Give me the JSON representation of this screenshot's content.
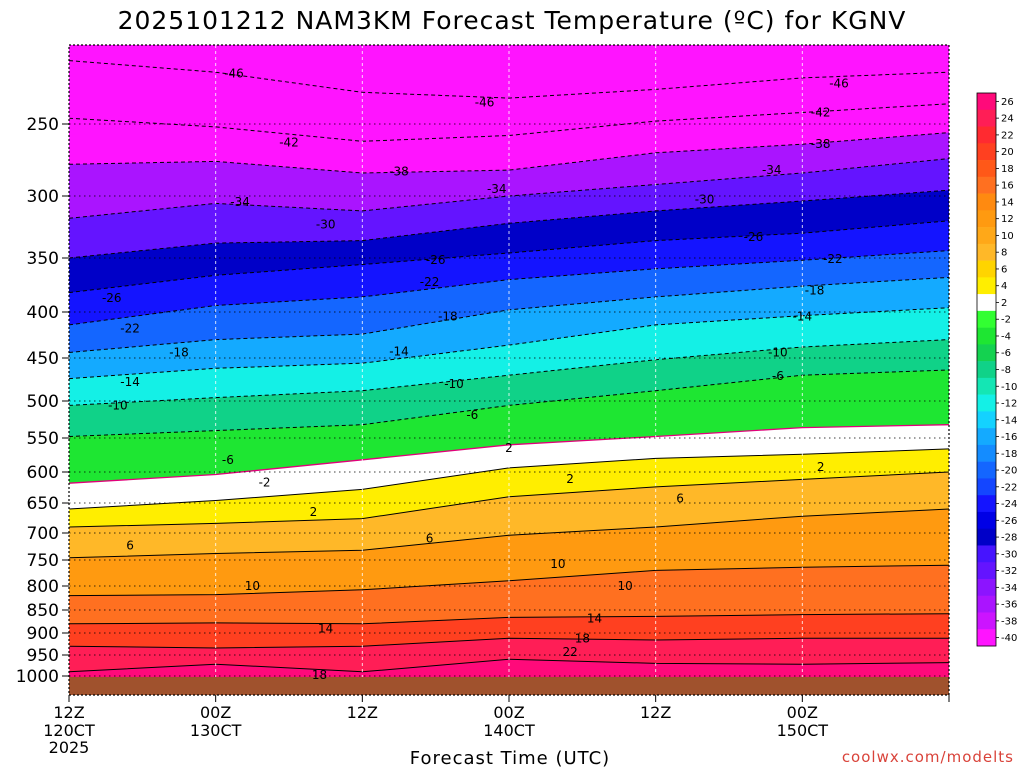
{
  "chart_data": {
    "type": "heatmap",
    "title": "2025101212 NAM3KM Forecast Temperature (ºC) for KGNV",
    "xlabel": "Forecast Time (UTC)",
    "ylabel": "",
    "credit": "coolwx.com/modelts",
    "x_range_hours": [
      0,
      72
    ],
    "y_range_hpa": [
      1050,
      200
    ],
    "y_ticks": [
      250,
      300,
      350,
      400,
      450,
      500,
      550,
      600,
      650,
      700,
      750,
      800,
      850,
      900,
      950,
      1000
    ],
    "y_tick_labels": [
      "250",
      "300",
      "350",
      "400",
      "450",
      "500",
      "550",
      "600",
      "650",
      "700",
      "750",
      "800",
      "850",
      "900",
      "950",
      "1000"
    ],
    "x_ticks": [
      {
        "hour": 0,
        "line1": "12Z",
        "line2": "120CT",
        "line3": "2025"
      },
      {
        "hour": 12,
        "line1": "00Z",
        "line2": "130CT",
        "line3": ""
      },
      {
        "hour": 24,
        "line1": "12Z",
        "line2": "",
        "line3": ""
      },
      {
        "hour": 36,
        "line1": "00Z",
        "line2": "140CT",
        "line3": ""
      },
      {
        "hour": 48,
        "line1": "12Z",
        "line2": "",
        "line3": ""
      },
      {
        "hour": 60,
        "line1": "00Z",
        "line2": "150CT",
        "line3": ""
      }
    ],
    "ground_pressure_hpa": 1000,
    "colorbar": {
      "labels": [
        "26",
        "24",
        "22",
        "20",
        "18",
        "16",
        "14",
        "12",
        "10",
        "8",
        "6",
        "4",
        "2",
        "-2",
        "-4",
        "-6",
        "-8",
        "-10",
        "-12",
        "-14",
        "-16",
        "-18",
        "-20",
        "-22",
        "-24",
        "-26",
        "-28",
        "-30",
        "-32",
        "-34",
        "-36",
        "-38",
        "-40"
      ],
      "colors": [
        "#ff0a7a",
        "#ff1e56",
        "#ff2a30",
        "#ff4020",
        "#ff5818",
        "#ff7020",
        "#ff8a10",
        "#ff9a10",
        "#ffa818",
        "#ffb828",
        "#ffd400",
        "#ffee00",
        "#ffffff",
        "#32ff32",
        "#1ee632",
        "#14d250",
        "#10d288",
        "#14e6b4",
        "#14f0e6",
        "#14d2ff",
        "#14aaff",
        "#148cff",
        "#1466ff",
        "#1446ff",
        "#1414ff",
        "#0000e6",
        "#0000c8",
        "#4614ff",
        "#6414ff",
        "#8c14ff",
        "#aa14ff",
        "#cc14ff",
        "#ff14ff"
      ]
    },
    "isotherm_labels": [
      {
        "text": "-46",
        "hour": 13.5,
        "p": 215
      },
      {
        "text": "-46",
        "hour": 34,
        "p": 235
      },
      {
        "text": "-46",
        "hour": 63,
        "p": 222
      },
      {
        "text": "-42",
        "hour": 18,
        "p": 263
      },
      {
        "text": "-42",
        "hour": 61.5,
        "p": 242
      },
      {
        "text": "-38",
        "hour": 27,
        "p": 283
      },
      {
        "text": "-38",
        "hour": 61.5,
        "p": 264
      },
      {
        "text": "-34",
        "hour": 14,
        "p": 305
      },
      {
        "text": "-34",
        "hour": 35,
        "p": 295
      },
      {
        "text": "-34",
        "hour": 57.5,
        "p": 282
      },
      {
        "text": "-30",
        "hour": 21,
        "p": 323
      },
      {
        "text": "-30",
        "hour": 52,
        "p": 303
      },
      {
        "text": "-26",
        "hour": 3.5,
        "p": 387
      },
      {
        "text": "-26",
        "hour": 30,
        "p": 352
      },
      {
        "text": "-26",
        "hour": 56,
        "p": 333
      },
      {
        "text": "-22",
        "hour": 5,
        "p": 418
      },
      {
        "text": "-22",
        "hour": 29.5,
        "p": 372
      },
      {
        "text": "-22",
        "hour": 62.5,
        "p": 351
      },
      {
        "text": "-18",
        "hour": 9,
        "p": 444
      },
      {
        "text": "-18",
        "hour": 31,
        "p": 405
      },
      {
        "text": "-18",
        "hour": 61,
        "p": 380
      },
      {
        "text": "-14",
        "hour": 5,
        "p": 478
      },
      {
        "text": "-14",
        "hour": 27,
        "p": 443
      },
      {
        "text": "-14",
        "hour": 60,
        "p": 405
      },
      {
        "text": "-10",
        "hour": 4,
        "p": 506
      },
      {
        "text": "-10",
        "hour": 31.5,
        "p": 480
      },
      {
        "text": "-10",
        "hour": 58,
        "p": 444
      },
      {
        "text": "-6",
        "hour": 13,
        "p": 582
      },
      {
        "text": "-6",
        "hour": 33,
        "p": 519
      },
      {
        "text": "-6",
        "hour": 58,
        "p": 471
      },
      {
        "text": "-2",
        "hour": 16,
        "p": 617
      },
      {
        "text": "2",
        "hour": 36,
        "p": 565
      },
      {
        "text": "2",
        "hour": 20,
        "p": 665
      },
      {
        "text": "2",
        "hour": 41,
        "p": 611
      },
      {
        "text": "2",
        "hour": 61.5,
        "p": 593
      },
      {
        "text": "6",
        "hour": 5,
        "p": 723
      },
      {
        "text": "6",
        "hour": 29.5,
        "p": 710
      },
      {
        "text": "6",
        "hour": 50,
        "p": 643
      },
      {
        "text": "10",
        "hour": 15,
        "p": 800
      },
      {
        "text": "10",
        "hour": 40,
        "p": 758
      },
      {
        "text": "10",
        "hour": 45.5,
        "p": 800
      },
      {
        "text": "14",
        "hour": 21,
        "p": 890
      },
      {
        "text": "14",
        "hour": 43,
        "p": 868
      },
      {
        "text": "18",
        "hour": 20.5,
        "p": 998
      },
      {
        "text": "18",
        "hour": 42,
        "p": 913
      },
      {
        "text": "22",
        "hour": 41,
        "p": 943
      }
    ]
  }
}
